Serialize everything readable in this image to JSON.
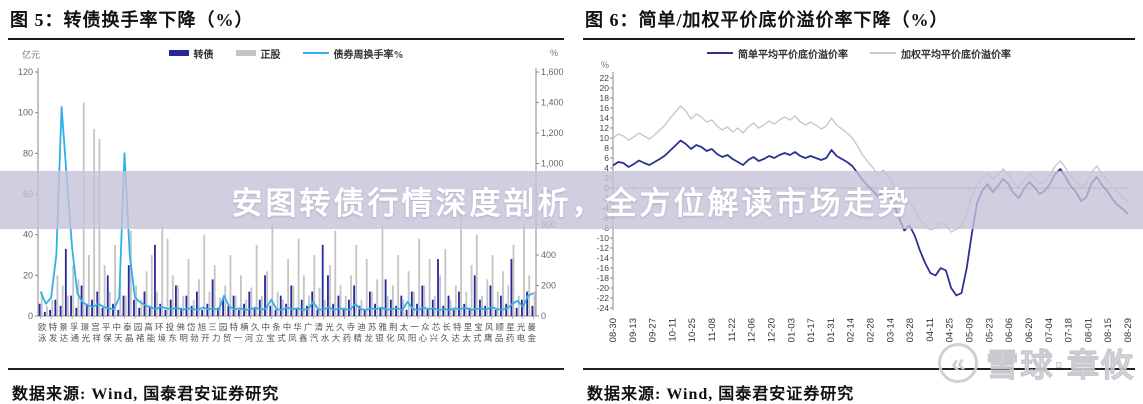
{
  "banner": {
    "text": "安图转债行情深度剖析，全方位解读市场走势",
    "bg": "rgba(196,194,215,0.8)"
  },
  "watermark": {
    "logo_glyph": "«",
    "text": "雪球·章攸"
  },
  "figures": [
    {
      "title": "图 5：转债换手率下降（%）",
      "left_unit": "亿元",
      "right_unit": "%",
      "legend": [
        {
          "label": "转债"
        },
        {
          "label": "正股"
        },
        {
          "label": "债券周换手率%"
        }
      ],
      "source": "数据来源: Wind, 国泰君安证券研究"
    },
    {
      "title": "图 6：简单/加权平价底价溢价率下降（%）",
      "left_unit": "%",
      "legend": [
        {
          "label": "简单平均平价底价溢价率"
        },
        {
          "label": "加权平均平价底价溢价率"
        }
      ],
      "source": "数据来源: Wind, 国泰君安证券研究"
    }
  ],
  "chart_data": [
    {
      "type": "bar",
      "title": "转债换手率下降（%）",
      "ylabel_left": "亿元",
      "ylabel_right": "%",
      "ylim_left": [
        0,
        120
      ],
      "yticks_left": [
        "0",
        "20",
        "40",
        "60",
        "80",
        "100",
        "120"
      ],
      "ylim_right": [
        0,
        1600
      ],
      "yticks_right": [
        "0",
        "200",
        "400",
        "600",
        "800",
        "1,000",
        "1,200",
        "1,400",
        "1,600"
      ],
      "categories_row1": "欧特景孚璟宫平中泰园高环投佛岱旭三园特横久中条中华广清光久寺迪苏雅荆太一众芯长特里宝风顺星光曼",
      "categories_row2": "泳发达通光祥保天晶褚能境东明勃开力贸一河立宝式凤鑫汽水大药精龙银化风阳心兴久达太式鹰品药电金",
      "colors": {
        "zhuanzhai": "#26279b",
        "zhenggu": "#c4c4c4",
        "turnover_line": "#30b0e8"
      },
      "series": [
        {
          "name": "转债",
          "kind": "bar",
          "axis": "left",
          "values": [
            6,
            2,
            3,
            8,
            5,
            33,
            10,
            4,
            15,
            6,
            8,
            12,
            4,
            20,
            6,
            3,
            10,
            25,
            8,
            4,
            12,
            5,
            35,
            6,
            3,
            8,
            15,
            4,
            10,
            5,
            12,
            3,
            6,
            18,
            4,
            8,
            5,
            10,
            3,
            6,
            12,
            4,
            8,
            20,
            5,
            3,
            10,
            6,
            15,
            4,
            8,
            5,
            12,
            3,
            35,
            20,
            6,
            10,
            4,
            8,
            15,
            5,
            3,
            12,
            6,
            4,
            18,
            8,
            5,
            10,
            3,
            12,
            6,
            15,
            4,
            8,
            28,
            5,
            10,
            3,
            12,
            6,
            4,
            20,
            8,
            5,
            15,
            3,
            10,
            6,
            28,
            4,
            8,
            12,
            5
          ]
        },
        {
          "name": "正股",
          "kind": "bar",
          "axis": "left",
          "values": [
            12,
            5,
            8,
            20,
            15,
            10,
            25,
            18,
            105,
            30,
            92,
            87,
            25,
            12,
            35,
            18,
            10,
            42,
            15,
            8,
            22,
            30,
            12,
            45,
            38,
            20,
            15,
            10,
            28,
            8,
            18,
            40,
            12,
            25,
            9,
            15,
            30,
            10,
            20,
            8,
            14,
            35,
            10,
            22,
            45,
            12,
            8,
            28,
            15,
            38,
            20,
            10,
            30,
            14,
            8,
            25,
            42,
            15,
            10,
            20,
            35,
            8,
            28,
            12,
            18,
            45,
            10,
            15,
            30,
            8,
            22,
            12,
            38,
            15,
            28,
            10,
            20,
            33,
            8,
            15,
            62,
            12,
            25,
            40,
            10,
            18,
            30,
            12,
            22,
            15,
            35,
            10,
            45,
            20,
            12
          ]
        },
        {
          "name": "债券周换手率%",
          "kind": "line",
          "axis": "right",
          "values": [
            160,
            80,
            120,
            400,
            1370,
            900,
            450,
            150,
            90,
            70,
            60,
            80,
            60,
            50,
            45,
            120,
            1067,
            400,
            120,
            90,
            70,
            55,
            45,
            60,
            50,
            45,
            55,
            40,
            50,
            45,
            40,
            55,
            45,
            50,
            40,
            133,
            60,
            45,
            50,
            40,
            45,
            55,
            40,
            50,
            107,
            45,
            40,
            55,
            45,
            50,
            40,
            45,
            93,
            40,
            45,
            55,
            40,
            50,
            45,
            40,
            80,
            45,
            40,
            50,
            45,
            55,
            40,
            45,
            50,
            40,
            93,
            45,
            40,
            55,
            45,
            50,
            40,
            45,
            40,
            50,
            45,
            55,
            40,
            45,
            50,
            40,
            60,
            45,
            40,
            50,
            80,
            100,
            60,
            133,
            150
          ]
        }
      ]
    },
    {
      "type": "line",
      "title": "简单/加权平价底价溢价率下降（%）",
      "ylabel": "%",
      "ylim": [
        -24,
        22
      ],
      "ytick_step": 2,
      "x_labels": [
        "08-30",
        "09-13",
        "09-27",
        "10-11",
        "10-25",
        "11-08",
        "11-22",
        "12-06",
        "12-20",
        "01-03",
        "01-17",
        "01-31",
        "02-14",
        "02-28",
        "03-14",
        "03-28",
        "04-11",
        "04-25",
        "05-09",
        "05-23",
        "06-06",
        "06-20",
        "07-04",
        "07-18",
        "08-01",
        "08-15",
        "08-29"
      ],
      "colors": {
        "simple": "#2a3191",
        "weighted": "#c8c8c8"
      },
      "series": [
        {
          "name": "简单平均平价底价溢价率",
          "values": [
            4.5,
            5.2,
            5.0,
            4.2,
            4.8,
            5.5,
            5.0,
            4.6,
            5.2,
            5.8,
            6.5,
            7.5,
            8.5,
            9.5,
            8.8,
            7.8,
            8.6,
            8.2,
            7.4,
            7.8,
            6.8,
            6.2,
            6.6,
            5.8,
            5.2,
            4.6,
            5.6,
            6.2,
            5.4,
            5.8,
            6.4,
            6.0,
            6.6,
            7.0,
            6.6,
            7.2,
            6.4,
            6.0,
            6.4,
            6.0,
            5.6,
            6.0,
            7.6,
            6.4,
            5.8,
            5.2,
            4.4,
            3.0,
            1.6,
            0.4,
            -0.6,
            -1.8,
            -0.4,
            -1.2,
            -3.2,
            -6.0,
            -8.5,
            -7.5,
            -9.5,
            -12.5,
            -15.0,
            -17.0,
            -17.5,
            -16.0,
            -16.5,
            -20.0,
            -21.5,
            -21.0,
            -16.0,
            -9.0,
            -3.0,
            -0.5,
            0.8,
            -0.8,
            0.4,
            1.8,
            0.8,
            -1.0,
            -2.0,
            -0.2,
            1.2,
            0.2,
            -1.2,
            -0.6,
            0.8,
            2.8,
            3.8,
            2.2,
            0.4,
            -0.8,
            -2.6,
            -1.8,
            1.0,
            2.2,
            0.6,
            -0.6,
            -2.2,
            -3.4,
            -4.2,
            -5.2
          ]
        },
        {
          "name": "加权平均平价底价溢价率",
          "values": [
            10.0,
            10.8,
            10.4,
            9.6,
            10.2,
            11.0,
            10.4,
            9.8,
            10.6,
            11.6,
            12.6,
            14.0,
            15.2,
            16.4,
            15.4,
            13.8,
            14.8,
            14.2,
            13.2,
            13.6,
            12.4,
            11.6,
            12.2,
            11.2,
            12.0,
            11.0,
            12.2,
            13.0,
            12.0,
            12.6,
            13.4,
            12.8,
            13.6,
            14.2,
            13.6,
            14.4,
            13.2,
            12.6,
            13.2,
            12.6,
            11.8,
            12.4,
            14.0,
            12.6,
            11.8,
            11.0,
            10.0,
            8.4,
            6.6,
            5.2,
            4.0,
            2.6,
            3.6,
            2.4,
            0.6,
            -1.6,
            -3.6,
            -2.8,
            -4.4,
            -6.2,
            -7.6,
            -8.4,
            -8.0,
            -7.0,
            -7.4,
            -8.8,
            -8.2,
            -7.6,
            -5.0,
            -1.6,
            0.6,
            2.0,
            3.0,
            1.8,
            2.6,
            3.8,
            2.8,
            1.0,
            0.2,
            1.6,
            3.0,
            2.0,
            0.8,
            1.4,
            2.6,
            4.4,
            5.4,
            4.0,
            2.4,
            1.4,
            0.2,
            0.8,
            3.2,
            4.4,
            2.8,
            1.6,
            0.2,
            -0.8,
            -1.8,
            -2.8
          ]
        }
      ]
    }
  ]
}
